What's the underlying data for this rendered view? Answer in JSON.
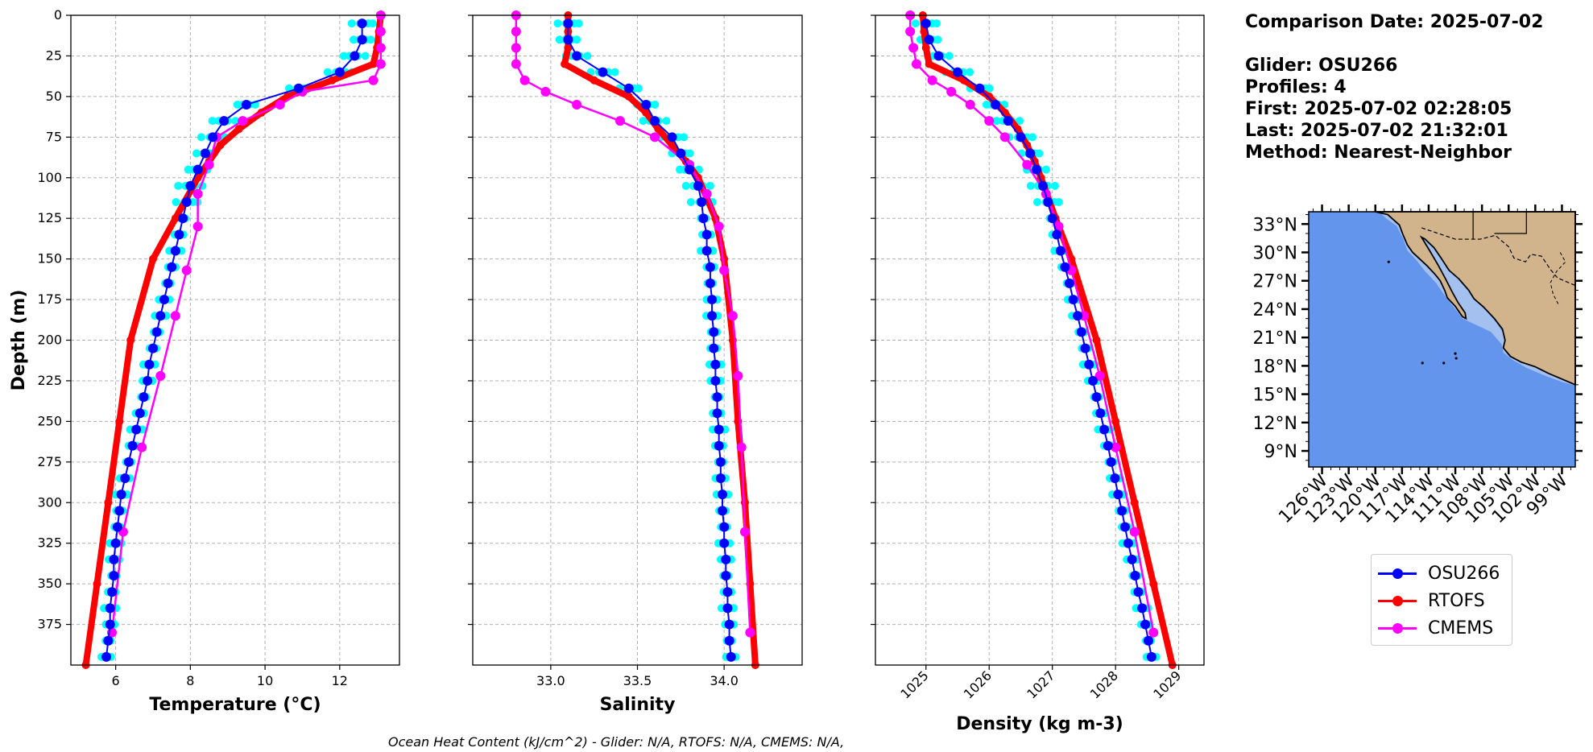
{
  "info": {
    "date_line": "Comparison Date: 2025-07-02",
    "glider_line": "Glider: OSU266",
    "profiles_line": "Profiles: 4",
    "first_line": "First: 2025-07-02 02:28:05",
    "last_line": "Last: 2025-07-02 21:32:01",
    "method_line": "Method: Nearest-Neighbor"
  },
  "footer_note": "Ocean Heat Content (kJ/cm^2) - Glider: N/A,  RTOFS: N/A,  CMEMS: N/A,",
  "legend": [
    {
      "name": "OSU266",
      "color": "#0000ff"
    },
    {
      "name": "RTOFS",
      "color": "#ff0000"
    },
    {
      "name": "CMEMS",
      "color": "#ff00ff"
    }
  ],
  "colors": {
    "glider_profiles": "#00ffff",
    "ocean": "#6495ed",
    "shelf": "#a3c0ee",
    "land": "#d2b48c"
  },
  "chart_data": [
    {
      "type": "line",
      "xlabel": "Temperature (°C)",
      "ylabel": "Depth (m)",
      "xlim": [
        4.8,
        13.6
      ],
      "ylim": [
        400,
        0
      ],
      "x_ticks": [
        6,
        8,
        10,
        12
      ],
      "y_ticks": [
        0,
        25,
        50,
        75,
        100,
        125,
        150,
        175,
        200,
        225,
        250,
        275,
        300,
        325,
        350,
        375
      ],
      "grid": true,
      "series": [
        {
          "name": "OSU266",
          "depth": [
            5,
            15,
            25,
            35,
            45,
            55,
            65,
            75,
            85,
            95,
            105,
            115,
            125,
            135,
            145,
            155,
            165,
            175,
            185,
            195,
            205,
            215,
            225,
            235,
            245,
            255,
            265,
            275,
            285,
            295,
            305,
            315,
            325,
            335,
            345,
            355,
            365,
            375,
            385,
            395
          ],
          "values": [
            12.6,
            12.6,
            12.4,
            12.0,
            10.9,
            9.5,
            8.9,
            8.6,
            8.4,
            8.2,
            8.0,
            7.9,
            7.8,
            7.7,
            7.6,
            7.5,
            7.4,
            7.3,
            7.2,
            7.1,
            7.0,
            6.9,
            6.85,
            6.75,
            6.65,
            6.55,
            6.45,
            6.35,
            6.25,
            6.15,
            6.1,
            6.05,
            6.0,
            5.95,
            5.95,
            5.9,
            5.85,
            5.85,
            5.8,
            5.75
          ]
        },
        {
          "name": "RTOFS",
          "depth": [
            0,
            10,
            20,
            30,
            40,
            50,
            60,
            70,
            80,
            90,
            100,
            125,
            150,
            200,
            250,
            300,
            350,
            400
          ],
          "values": [
            13.1,
            13.05,
            13.0,
            12.9,
            11.8,
            10.6,
            9.9,
            9.3,
            8.8,
            8.5,
            8.2,
            7.6,
            7.0,
            6.4,
            6.1,
            5.8,
            5.5,
            5.2
          ]
        },
        {
          "name": "CMEMS",
          "depth": [
            0,
            10,
            20,
            30,
            40,
            47,
            55,
            65,
            75,
            92,
            110,
            130,
            157,
            185,
            222,
            266,
            318,
            380
          ],
          "values": [
            13.1,
            13.1,
            13.1,
            13.1,
            12.9,
            11.0,
            10.4,
            9.4,
            8.7,
            8.5,
            8.2,
            8.2,
            7.9,
            7.6,
            7.2,
            6.7,
            6.2,
            5.9
          ]
        }
      ]
    },
    {
      "type": "line",
      "xlabel": "Salinity",
      "ylabel": "",
      "xlim": [
        32.55,
        34.45
      ],
      "ylim": [
        400,
        0
      ],
      "x_ticks": [
        33.0,
        33.5,
        34.0
      ],
      "y_ticks": [
        0,
        25,
        50,
        75,
        100,
        125,
        150,
        175,
        200,
        225,
        250,
        275,
        300,
        325,
        350,
        375
      ],
      "grid": true,
      "series": [
        {
          "name": "OSU266",
          "depth": [
            5,
            15,
            25,
            35,
            45,
            55,
            65,
            75,
            85,
            95,
            105,
            115,
            125,
            135,
            145,
            155,
            165,
            175,
            185,
            195,
            205,
            215,
            225,
            235,
            245,
            255,
            265,
            275,
            285,
            295,
            305,
            315,
            325,
            335,
            345,
            355,
            365,
            375,
            385,
            395
          ],
          "values": [
            33.1,
            33.1,
            33.15,
            33.3,
            33.45,
            33.55,
            33.6,
            33.7,
            33.75,
            33.8,
            33.85,
            33.87,
            33.88,
            33.9,
            33.9,
            33.92,
            33.92,
            33.93,
            33.93,
            33.94,
            33.94,
            33.95,
            33.95,
            33.96,
            33.96,
            33.97,
            33.97,
            33.98,
            33.98,
            33.99,
            33.99,
            34.0,
            34.0,
            34.01,
            34.01,
            34.02,
            34.02,
            34.03,
            34.03,
            34.04
          ]
        },
        {
          "name": "RTOFS",
          "depth": [
            0,
            10,
            20,
            30,
            40,
            50,
            60,
            70,
            80,
            90,
            100,
            125,
            150,
            200,
            250,
            300,
            350,
            400
          ],
          "values": [
            33.1,
            33.1,
            33.1,
            33.08,
            33.25,
            33.45,
            33.55,
            33.62,
            33.7,
            33.78,
            33.85,
            33.95,
            34.0,
            34.05,
            34.08,
            34.12,
            34.15,
            34.18
          ]
        },
        {
          "name": "CMEMS",
          "depth": [
            0,
            10,
            20,
            30,
            40,
            47,
            55,
            65,
            75,
            92,
            110,
            130,
            157,
            185,
            222,
            266,
            318,
            380
          ],
          "values": [
            32.8,
            32.8,
            32.8,
            32.8,
            32.85,
            32.97,
            33.15,
            33.4,
            33.6,
            33.8,
            33.9,
            33.97,
            34.0,
            34.05,
            34.08,
            34.1,
            34.12,
            34.15
          ]
        }
      ]
    },
    {
      "type": "line",
      "xlabel": "Density (kg m-3)",
      "ylabel": "",
      "xlim": [
        1024.2,
        1029.4
      ],
      "ylim": [
        400,
        0
      ],
      "x_ticks": [
        1025,
        1026,
        1027,
        1028,
        1029
      ],
      "y_ticks": [
        0,
        25,
        50,
        75,
        100,
        125,
        150,
        175,
        200,
        225,
        250,
        275,
        300,
        325,
        350,
        375
      ],
      "grid": true,
      "series": [
        {
          "name": "OSU266",
          "depth": [
            5,
            15,
            25,
            35,
            45,
            55,
            65,
            75,
            85,
            95,
            105,
            115,
            125,
            135,
            145,
            155,
            165,
            175,
            185,
            195,
            205,
            215,
            225,
            235,
            245,
            255,
            265,
            275,
            285,
            295,
            305,
            315,
            325,
            335,
            345,
            355,
            365,
            375,
            385,
            395
          ],
          "values": [
            1025.0,
            1025.05,
            1025.2,
            1025.5,
            1025.85,
            1026.1,
            1026.3,
            1026.5,
            1026.65,
            1026.75,
            1026.85,
            1026.93,
            1027.0,
            1027.07,
            1027.13,
            1027.2,
            1027.27,
            1027.33,
            1027.4,
            1027.46,
            1027.52,
            1027.58,
            1027.64,
            1027.7,
            1027.76,
            1027.82,
            1027.88,
            1027.93,
            1027.99,
            1028.04,
            1028.1,
            1028.15,
            1028.2,
            1028.26,
            1028.31,
            1028.36,
            1028.42,
            1028.47,
            1028.52,
            1028.57
          ]
        },
        {
          "name": "RTOFS",
          "depth": [
            0,
            10,
            20,
            30,
            40,
            50,
            60,
            70,
            80,
            90,
            100,
            125,
            150,
            200,
            250,
            300,
            350,
            400
          ],
          "values": [
            1024.95,
            1024.97,
            1025.0,
            1025.05,
            1025.6,
            1026.0,
            1026.25,
            1026.45,
            1026.6,
            1026.72,
            1026.82,
            1027.05,
            1027.3,
            1027.7,
            1028.0,
            1028.3,
            1028.6,
            1028.9
          ]
        },
        {
          "name": "CMEMS",
          "depth": [
            0,
            10,
            20,
            30,
            40,
            47,
            55,
            65,
            75,
            92,
            110,
            130,
            157,
            185,
            222,
            266,
            318,
            380
          ],
          "values": [
            1024.75,
            1024.75,
            1024.8,
            1024.85,
            1025.1,
            1025.4,
            1025.7,
            1026.0,
            1026.25,
            1026.6,
            1026.9,
            1027.1,
            1027.3,
            1027.5,
            1027.75,
            1028.0,
            1028.3,
            1028.6
          ]
        }
      ]
    }
  ],
  "map": {
    "lat_labels": [
      "33°N",
      "30°N",
      "27°N",
      "24°N",
      "21°N",
      "18°N",
      "15°N",
      "12°N",
      "9°N"
    ],
    "lat_values": [
      33,
      30,
      27,
      24,
      21,
      18,
      15,
      12,
      9
    ],
    "lon_labels": [
      "126°W",
      "123°W",
      "120°W",
      "117°W",
      "114°W",
      "111°W",
      "108°W",
      "105°W",
      "102°W",
      "99°W"
    ],
    "lon_values": [
      -126,
      -123,
      -120,
      -117,
      -114,
      -111,
      -108,
      -105,
      -102,
      -99
    ]
  }
}
